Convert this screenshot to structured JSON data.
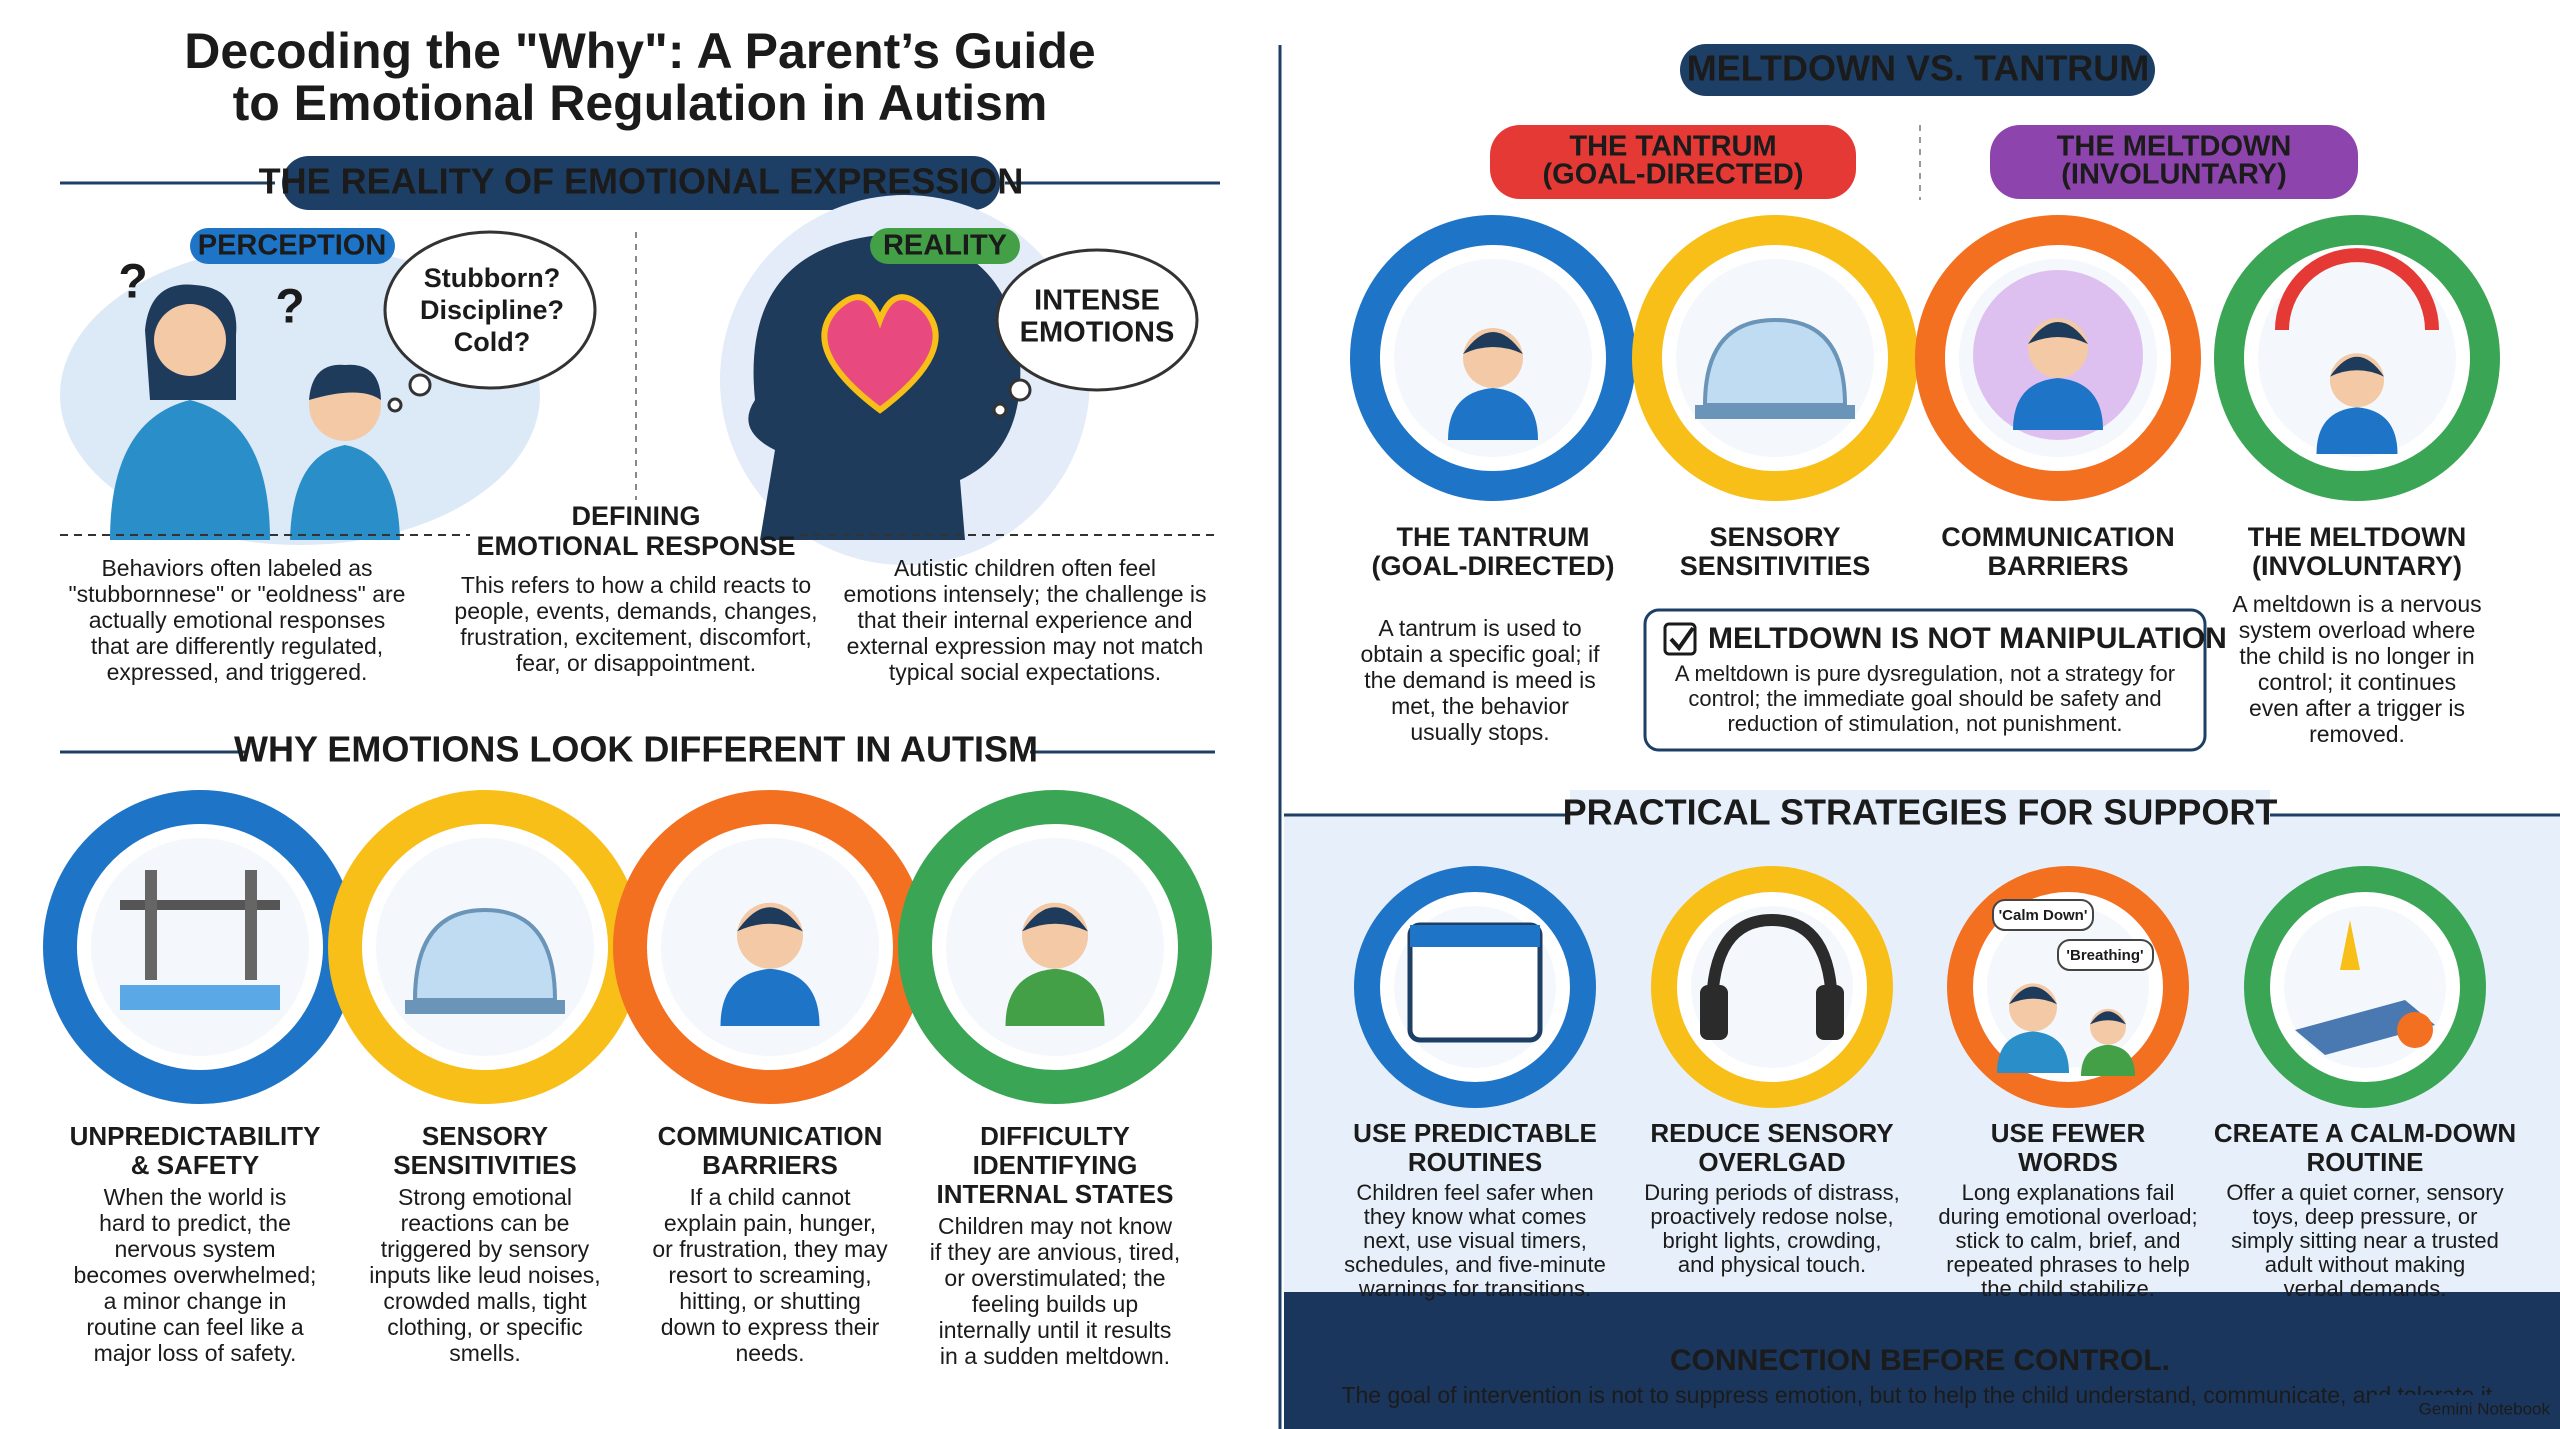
{
  "header": {
    "title": [
      "Decoding the \"Why\": A Parent’s Guide",
      "to Emotional Regulation in Autism"
    ]
  },
  "reality": {
    "heading": "THE REALITY OF EMOTIONAL EXPRESSION",
    "perception": {
      "label": "PERCEPTION",
      "thought": [
        "Stubborn?",
        "Discipline?",
        "Cold?"
      ],
      "text": [
        "Behaviors often labeled as",
        "\"stubbornnese\" or \"eoldness\" are",
        "actually emotional responses",
        "that are differently regulated,",
        "expressed, and triggered."
      ]
    },
    "reality": {
      "label": "REALITY",
      "thought": [
        "INTENSE",
        "EMOTIONS"
      ],
      "text": [
        "Autistic children often feel",
        "emotions intensely; the challenge is",
        "that their internal experience and",
        "external expression may not match",
        "typical social expectations."
      ]
    },
    "defining": {
      "title": [
        "DEFINING",
        "EMOTIONAL RESPONSE"
      ],
      "text": [
        "This refers to how a child reacts to",
        "people, events, demands, changes,",
        "frustration, excitement, discomfort,",
        "fear, or disappointment."
      ]
    }
  },
  "why": {
    "heading": "WHY EMOTIONS LOOK DIFFERENT IN AUTISM",
    "items": [
      {
        "title": [
          "UNPREDICTABILITY",
          "& SAFETY"
        ],
        "text": [
          "When the world is",
          "hard to predict, the",
          "nervous system",
          "becomes overwhelmed;",
          "a minor change in",
          "routine can feel like a",
          "major loss of safety."
        ]
      },
      {
        "title": [
          "SENSORY",
          "SENSITIVITIES"
        ],
        "text": [
          "Strong emotional",
          "reactions can be",
          "triggered by sensory",
          "inputs like leud noises,",
          "crowded malls, tight",
          "clothing, or specific",
          "smells."
        ]
      },
      {
        "title": [
          "COMMUNICATION",
          "BARRIERS"
        ],
        "text": [
          "If a child cannot",
          "explain pain, hunger,",
          "or frustration, they may",
          "resort to screaming,",
          "hitting, or shutting",
          "down to express their",
          "needs."
        ]
      },
      {
        "title": [
          "DIFFICULTY",
          "IDENTIFYING",
          "INTERNAL STATES"
        ],
        "text": [
          "Children may not know",
          "if they are anvious, tired,",
          "or overstimulated; the",
          "feeling builds up",
          "internally until it results",
          "in a sudden meltdown."
        ]
      }
    ]
  },
  "comparison": {
    "heading": "MELTDOWN VS. TANTRUM",
    "tantrum_tag": [
      "THE TANTRUM",
      "(GOAL-DIRECTED)"
    ],
    "meltdown_tag": [
      "THE MELTDOWN",
      "(INVOLUNTARY)"
    ],
    "items": [
      {
        "title": [
          "THE TANTRUM",
          "(GOAL-DIRECTED)"
        ]
      },
      {
        "title": [
          "SENSORY",
          "SENSITIVITIES"
        ]
      },
      {
        "title": [
          "COMMUNICATION",
          "BARRIERS"
        ]
      },
      {
        "title": [
          "THE MELTDOWN",
          "(INVOLUNTARY)"
        ]
      }
    ],
    "tantrum_text": [
      "A tantrum is used to",
      "obtain a specific goal; if",
      "the demand is meed is",
      "met, the behavior",
      "usually stops."
    ],
    "meltdown_text": [
      "A meltdown is a nervous",
      "system overload where",
      "the child is no longer in",
      "control; it continues",
      "even after a trigger is",
      "removed."
    ],
    "callout": {
      "title": "MELTDOWN IS NOT MANIPULATION",
      "text": [
        "A meltdown is pure dysregulation, not a strategy for",
        "control; the immediate goal should be safety and",
        "reduction of stimulation, not punishment."
      ]
    }
  },
  "strategies": {
    "heading": "PRACTICAL STRATEGIES FOR SUPPORT",
    "bubbles": [
      "'Calm Down'",
      "'Breathing'"
    ],
    "items": [
      {
        "title": [
          "USE PREDICTABLE",
          "ROUTINES"
        ],
        "text": [
          "Children feel safer when",
          "they know what comes",
          "next, use visual timers,",
          "schedules, and five-minute",
          "warnings for transitions."
        ]
      },
      {
        "title": [
          "REDUCE SENSORY",
          "OVERLGAD"
        ],
        "text": [
          "During periods of distrass,",
          "proactively redose nolse,",
          "bright lights, crowding,",
          "and physical touch."
        ]
      },
      {
        "title": [
          "USE FEWER",
          "WORDS"
        ],
        "text": [
          "Long explanations fail",
          "during emotional overload;",
          "stick to calm, brief, and",
          "repeated phrases to help",
          "the child stabilize."
        ]
      },
      {
        "title": [
          "CREATE A CALM-DOWN",
          "ROUTINE"
        ],
        "text": [
          "Offer a quiet corner, sensory",
          "toys, deep pressure, or",
          "simply sitting near a trusted",
          "adult without making",
          "verbal demands."
        ]
      }
    ]
  },
  "footer": {
    "title": "CONNECTION BEFORE CONTROL.",
    "text": "The goal of intervention is not to suppress emotion, but to help the child understand, communicate, and tolerate it.",
    "brand": "Gemini Notebook"
  }
}
